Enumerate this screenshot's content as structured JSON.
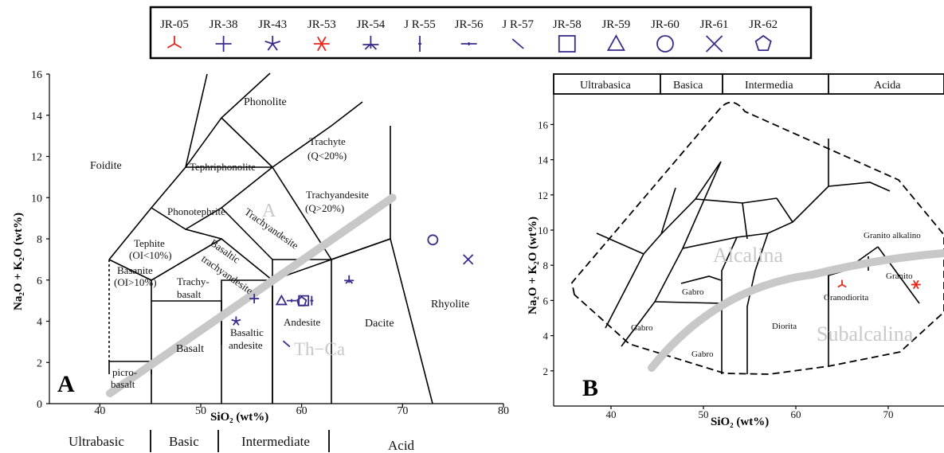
{
  "legend": {
    "items": [
      {
        "label": "JR-05",
        "symbol": "y-mark",
        "color": "#e8261c"
      },
      {
        "label": "JR-38",
        "symbol": "plus",
        "color": "#3b2a8c"
      },
      {
        "label": "JR-43",
        "symbol": "star5",
        "color": "#3b2a8c"
      },
      {
        "label": "JR-53",
        "symbol": "asterisk",
        "color": "#e8261c"
      },
      {
        "label": "JR-54",
        "symbol": "tri-star",
        "color": "#3b2a8c"
      },
      {
        "label": "J R-55",
        "symbol": "vbar",
        "color": "#3b2a8c"
      },
      {
        "label": "JR-56",
        "symbol": "hbar",
        "color": "#3b2a8c"
      },
      {
        "label": "J R-57",
        "symbol": "slash",
        "color": "#3b2a8c"
      },
      {
        "label": "JR-58",
        "symbol": "square",
        "color": "#3b2a8c"
      },
      {
        "label": "JR-59",
        "symbol": "triangle",
        "color": "#3b2a8c"
      },
      {
        "label": "JR-60",
        "symbol": "circle",
        "color": "#3b2a8c"
      },
      {
        "label": "JR-61",
        "symbol": "cross",
        "color": "#3b2a8c"
      },
      {
        "label": "JR-62",
        "symbol": "pentagon",
        "color": "#3b2a8c"
      }
    ]
  },
  "chart_data": [
    {
      "type": "scatter",
      "panel_label": "A",
      "xlabel": "SiO₂ (wt%)",
      "ylabel": "Na₂O + K₂O (wt%)",
      "xlim": [
        35,
        80
      ],
      "ylim": [
        0,
        16
      ],
      "xticks": [
        40,
        50,
        60,
        70,
        80
      ],
      "yticks": [
        0,
        2,
        4,
        6,
        8,
        10,
        12,
        14,
        16
      ],
      "field_labels": {
        "phonolite": "Phonolite",
        "foidite": "Foidite",
        "tephriphonolite": "Tephriphonolite",
        "trachyte": "Trachyte",
        "trachyte_q": "(Q<20%)",
        "trachyandesite": "Trachyandesite",
        "trachyandesite_q": "(Q>20%)",
        "phonotephrite": "Phonotephrite",
        "tephrite": "Tephite",
        "tephrite_ol": "(OI<10%)",
        "basanite": "Basanite",
        "basanite_ol": "(OI>10%)",
        "basaltic_trachyandesite_1": "Basaltic",
        "basaltic_trachyandesite_2": "trachyandesite",
        "trachyandesite_diag": "Trachyandesite",
        "trachybasalt_1": "Trachy-",
        "trachybasalt_2": "basalt",
        "rhyolite": "Rhyolite",
        "dacite": "Dacite",
        "andesite": "Andesite",
        "basaltic_andesite_1": "Basaltic",
        "basaltic_andesite_2": "andesite",
        "basalt": "Basalt",
        "picrobasalt_1": "picro-",
        "picrobasalt_2": "basalt",
        "alkaline": "A",
        "subalkaline": "Th−Ca"
      },
      "divider_line": {
        "x": [
          41,
          69
        ],
        "y": [
          0.5,
          10.0
        ],
        "color": "#c8c8c8"
      },
      "classification": [
        "Ultrabasic",
        "Basic",
        "Intermediate",
        "Acid"
      ],
      "points": [
        {
          "sample": "JR-38",
          "x": 55.3,
          "y": 5.1
        },
        {
          "sample": "JR-43",
          "x": 53.5,
          "y": 4.0
        },
        {
          "sample": "JR-54",
          "x": 64.7,
          "y": 6.0
        },
        {
          "sample": "J R-55",
          "x": 61.0,
          "y": 5.0
        },
        {
          "sample": "JR-56",
          "x": 59.0,
          "y": 5.0
        },
        {
          "sample": "J R-57",
          "x": 58.5,
          "y": 2.9
        },
        {
          "sample": "JR-58",
          "x": 60.2,
          "y": 5.0
        },
        {
          "sample": "JR-59",
          "x": 58.0,
          "y": 5.0
        },
        {
          "sample": "JR-60",
          "x": 73.0,
          "y": 7.95
        },
        {
          "sample": "JR-61",
          "x": 76.5,
          "y": 7.0
        },
        {
          "sample": "JR-62",
          "x": 60.0,
          "y": 4.95
        }
      ]
    },
    {
      "type": "scatter",
      "panel_label": "B",
      "xlabel": "SiO₂ (wt%)",
      "ylabel": "Na₂O + K₂O (wt%)",
      "xlim": [
        35,
        75
      ],
      "ylim": [
        0,
        17
      ],
      "xticks": [
        40,
        50,
        60,
        70
      ],
      "yticks": [
        2,
        4,
        6,
        8,
        10,
        12,
        14,
        16
      ],
      "classification": [
        "Ultrabasica",
        "Basica",
        "Intermedia",
        "Acida"
      ],
      "field_labels": {
        "granito_alkalino": "Granito alkalino",
        "granito": "Granito",
        "granodiorita": "Granodiorita",
        "diorita": "Diorita",
        "gabro1": "Gabro",
        "gabro2": "Gabro",
        "gabro3": "Gabro",
        "alcalina": "Alcalina",
        "subalcalina": "Subalcalina"
      },
      "points": [
        {
          "sample": "JR-05",
          "x": 65.0,
          "y": 6.9
        },
        {
          "sample": "JR-53",
          "x": 73.0,
          "y": 6.9
        }
      ]
    }
  ]
}
